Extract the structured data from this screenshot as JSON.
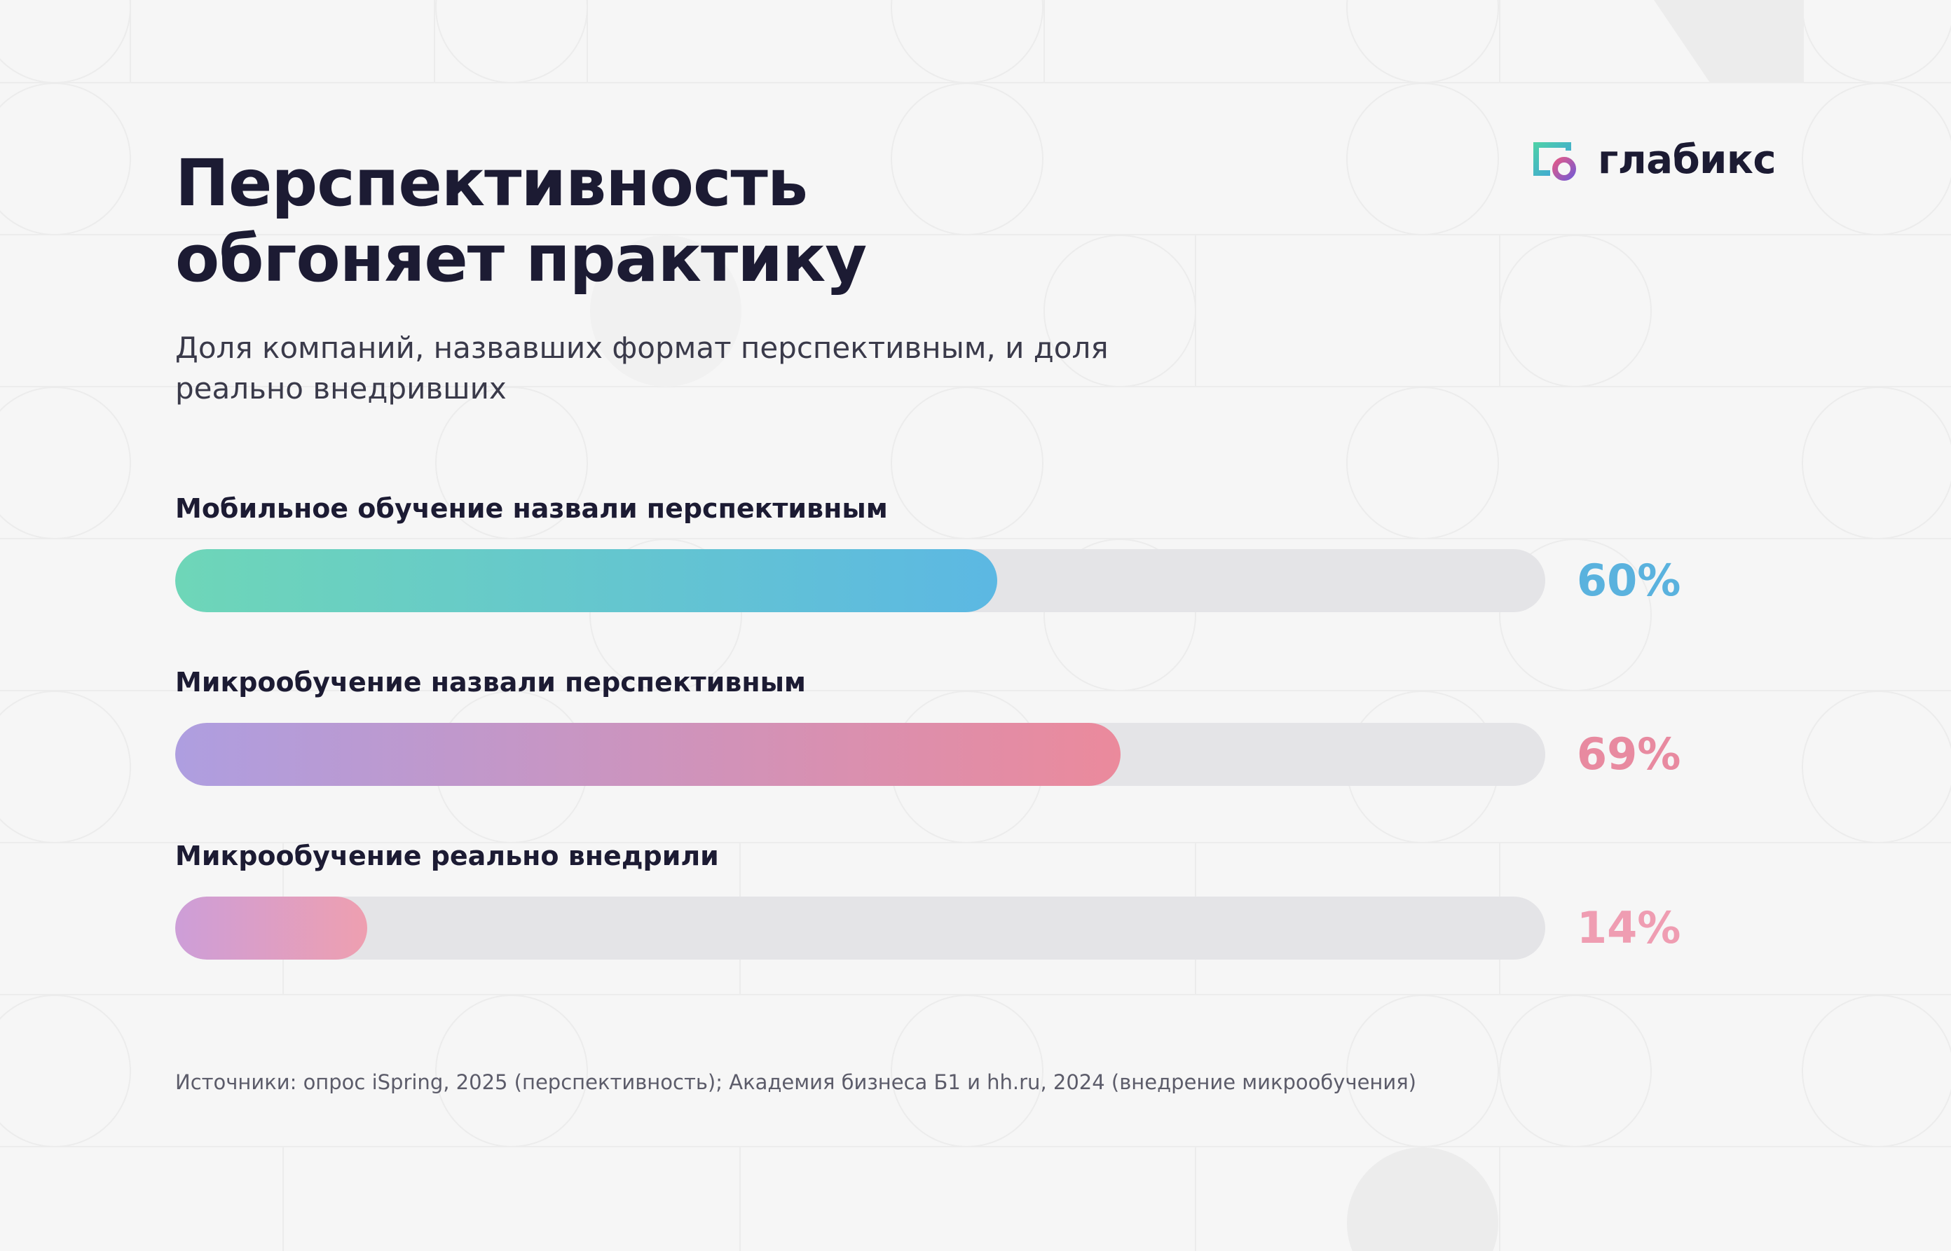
{
  "title_lines": [
    "Перспективность",
    "обгоняет практику"
  ],
  "subtitle": "Доля компаний, назвавших формат перспективным, и доля реально внедривших",
  "logo": {
    "text": "глабикс",
    "icon": "glabix-logo-icon"
  },
  "chart_data": {
    "type": "bar",
    "orientation": "horizontal",
    "title": "Перспективность обгоняет практику",
    "subtitle": "Доля компаний, назвавших формат перспективным, и доля реально внедривших",
    "xlim": [
      0,
      100
    ],
    "grid": false,
    "legend": "none",
    "bars": [
      {
        "label": "Мобильное обучение назвали перспективным",
        "value": 60,
        "display": "60%",
        "gradient": [
          "#6ed6b8",
          "#5cb8e3"
        ],
        "value_color": "#5ab2de"
      },
      {
        "label": "Микрообучение назвали перспективным",
        "value": 69,
        "display": "69%",
        "gradient": [
          "#ae9ee0",
          "#eb8a9c"
        ],
        "value_color": "#e88aa0"
      },
      {
        "label": "Микрообучение реально внедрили",
        "value": 14,
        "display": "14%",
        "gradient": [
          "#cd9ed8",
          "#ee9fb0"
        ],
        "value_color": "#ef9db2"
      }
    ]
  },
  "source": "Источники: опрос iSpring, 2025 (перспективность); Академия бизнеса Б1 и hh.ru, 2024 (внедрение микрообучения)",
  "colors": {
    "background": "#f6f6f6",
    "track": "#e4e4e7",
    "text_dark": "#1c1b33"
  }
}
